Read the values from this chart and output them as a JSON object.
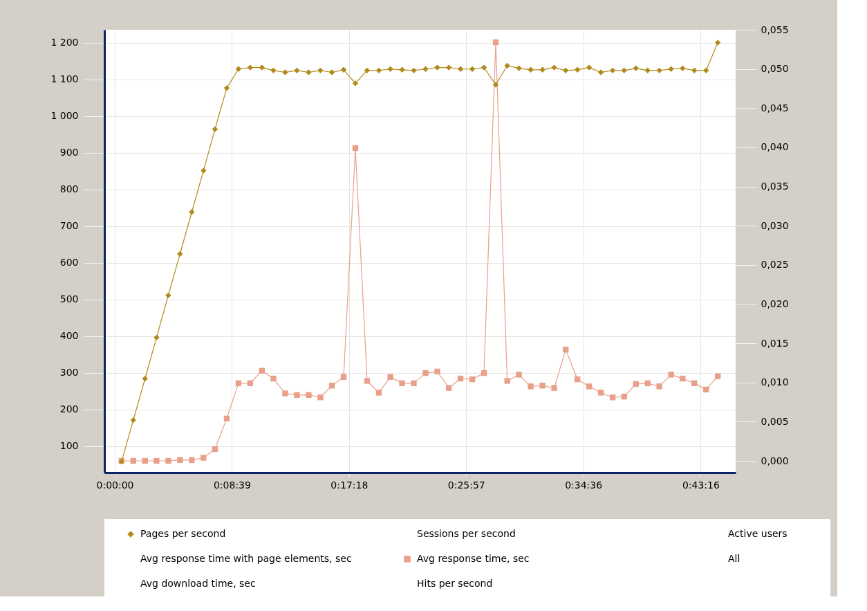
{
  "chart_data": {
    "type": "line",
    "x": [
      30,
      82,
      134,
      185,
      237,
      289,
      341,
      393,
      444,
      496,
      548,
      600,
      652,
      703,
      755,
      807,
      859,
      911,
      962,
      1014,
      1066,
      1118,
      1170,
      1221,
      1273,
      1325,
      1377,
      1429,
      1480,
      1532,
      1584,
      1636,
      1688,
      1739,
      1791,
      1843,
      1895,
      1947,
      1998,
      2050,
      2102,
      2154,
      2206,
      2257,
      2309,
      2361,
      2413,
      2465,
      2516,
      2568,
      2620,
      2672
    ],
    "series": [
      {
        "name": "Pages per second",
        "color": "#b08a1a",
        "marker": "diamond",
        "axis": "y",
        "values": [
          58,
          171,
          284,
          396,
          511,
          624,
          738,
          851,
          964,
          1076,
          1128,
          1132,
          1132,
          1124,
          1119,
          1124,
          1119,
          1124,
          1119,
          1126,
          1089,
          1124,
          1124,
          1128,
          1126,
          1124,
          1128,
          1132,
          1132,
          1128,
          1128,
          1132,
          1085,
          1137,
          1130,
          1126,
          1126,
          1132,
          1124,
          1126,
          1132,
          1119,
          1124,
          1124,
          1130,
          1124,
          1124,
          1128,
          1130,
          1124,
          1124,
          1200
        ]
      },
      {
        "name": "Avg response time, sec",
        "color": "#e8a08a",
        "marker": "square",
        "axis": "y2",
        "values": [
          0.0,
          0.0,
          0.0,
          0.0,
          0.0,
          0.0001,
          0.0001,
          0.0004,
          0.0015,
          0.0054,
          0.0099,
          0.0099,
          0.0115,
          0.0105,
          0.0086,
          0.0084,
          0.0084,
          0.0081,
          0.0096,
          0.0107,
          0.0399,
          0.0102,
          0.0087,
          0.0107,
          0.0099,
          0.0099,
          0.0112,
          0.0114,
          0.0093,
          0.0105,
          0.0104,
          0.0112,
          0.0534,
          0.0102,
          0.011,
          0.0095,
          0.0096,
          0.0093,
          0.0142,
          0.0104,
          0.0095,
          0.0087,
          0.0081,
          0.0082,
          0.0098,
          0.0099,
          0.0095,
          0.011,
          0.0105,
          0.0099,
          0.0091,
          0.0108
        ]
      }
    ],
    "xlim": [
      -46,
      2751
    ],
    "xticks": [
      {
        "value": 0,
        "label": "0:00:00"
      },
      {
        "value": 519,
        "label": "0:08:39"
      },
      {
        "value": 1038,
        "label": "0:17:18"
      },
      {
        "value": 1557,
        "label": "0:25:57"
      },
      {
        "value": 2076,
        "label": "0:34:36"
      },
      {
        "value": 2596,
        "label": "0:43:16"
      }
    ],
    "ylim": [
      28,
      1235
    ],
    "yticks": [
      100,
      200,
      300,
      400,
      500,
      600,
      700,
      800,
      900,
      {
        "value": 1000,
        "label": "1 000"
      },
      {
        "value": 1100,
        "label": "1 100"
      },
      {
        "value": 1200,
        "label": "1 200"
      }
    ],
    "y2lim": [
      -0.0015,
      0.055
    ],
    "y2ticks": [
      {
        "value": 0,
        "label": "0,000"
      },
      {
        "value": 0.005,
        "label": "0,005"
      },
      {
        "value": 0.01,
        "label": "0,010"
      },
      {
        "value": 0.015,
        "label": "0,015"
      },
      {
        "value": 0.02,
        "label": "0,020"
      },
      {
        "value": 0.025,
        "label": "0,025"
      },
      {
        "value": 0.03,
        "label": "0,030"
      },
      {
        "value": 0.035,
        "label": "0,035"
      },
      {
        "value": 0.04,
        "label": "0,040"
      },
      {
        "value": 0.045,
        "label": "0,045"
      },
      {
        "value": 0.05,
        "label": "0,050"
      },
      {
        "value": 0.055,
        "label": "0,055"
      }
    ],
    "grid": true,
    "legend": "bottom",
    "line_style": "solid",
    "annotations": [
      "Avg response time with page elements, sec",
      "Avg download time, sec",
      "Sessions per second",
      "Hits per second",
      "Active users",
      "All"
    ]
  }
}
